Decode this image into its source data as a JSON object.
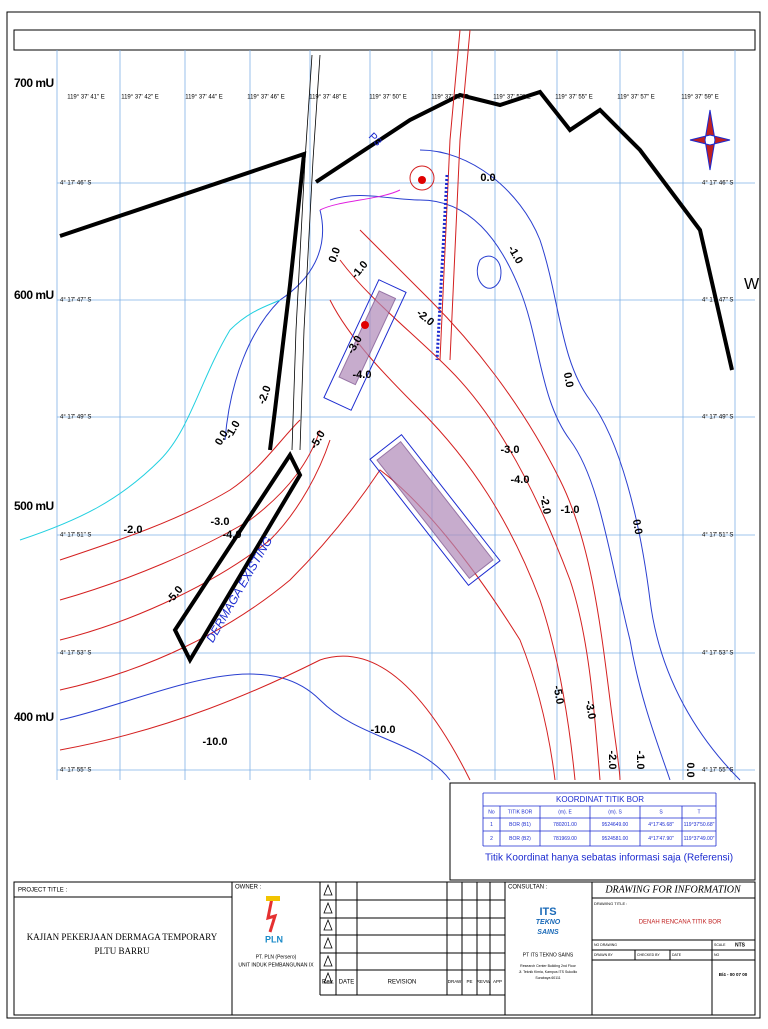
{
  "map": {
    "y_axis_labels": [
      "700 mU",
      "600 mU",
      "500 mU",
      "400 mU"
    ],
    "top_coords": [
      "119° 37' 41\" E",
      "119° 37' 42\" E",
      "119° 37' 44\" E",
      "119° 37' 46\" E",
      "119° 37' 48\" E",
      "119° 37' 50\" E",
      "119° 37' 51\" E",
      "119° 37' 53\" E",
      "119° 37' 55\" E",
      "119° 37' 57\" E",
      "119° 37' 59\" E"
    ],
    "left_coords": [
      "4° 17' 46\" S",
      "4° 17' 47\" S",
      "4° 17' 49\" S",
      "4° 17' 51\" S",
      "4° 17' 53\" S",
      "4° 17' 55\" S"
    ],
    "right_coords": [
      "4° 17' 46\" S",
      "4° 17' 47\" S",
      "4° 17' 49\" S",
      "4° 17' 51\" S",
      "4° 17' 53\" S",
      "4° 17' 55\" S"
    ],
    "contour_labels": [
      "0.0",
      "-1.0",
      "-2.0",
      "-1.0",
      "0.0",
      "-3.0",
      "-4.0",
      "0.0",
      "-2.0",
      "-1.0",
      "0.0",
      "-5.0",
      "-3.0",
      "-4.0",
      "-2.0",
      "-1.0",
      "0.0",
      "-2.0",
      "-3.0",
      "-4.0",
      "-5.0",
      "-5.0",
      "-3.0",
      "-2.0",
      "-1.0",
      "0.0",
      "-10.0",
      "-10.0"
    ],
    "structure_label": "DERMAGA EXISTING",
    "marker": "P3",
    "edge_letter": "W"
  },
  "table": {
    "title": "KOORDINAT TITIK BOR",
    "headers": [
      "No",
      "TITIK BOR",
      "(m). E",
      "(m). S",
      "S",
      "T"
    ],
    "rows": [
      [
        "1",
        "BOR (B1)",
        "780201.00",
        "9524649.00",
        "4°17'45.68\"",
        "119°37'50.68\""
      ],
      [
        "2",
        "BOR (B2)",
        "781969.00",
        "9524581.00",
        "4°17'47.90\"",
        "119°37'49.00\""
      ]
    ],
    "note": "Titik Koordinat hanya sebatas informasi saja (Referensi)"
  },
  "title_block": {
    "project_title_label": "PROJECT TITLE :",
    "project_title": [
      "KAJIAN PEKERJAAN DERMAGA TEMPORARY",
      "PLTU BARRU"
    ],
    "owner_label": "OWNER :",
    "owner_logo": "PLN",
    "owner": [
      "PT. PLN (Persero)",
      "UNIT INDUK PEMBANGUNAN IX"
    ],
    "revision_headers": [
      "Rev.",
      "DATE",
      "REVISION",
      "DRAW",
      "PE",
      "REVW",
      "APP"
    ],
    "consultant_label": "CONSULTAN :",
    "consultant_logo": [
      "ITS",
      "TEKNO",
      "SAINS"
    ],
    "consultant": "PT ITS TEKNO SAINS",
    "consultant_address": [
      "Research Center Building 2nd Floor",
      "Jl. Teknik Kimia, Kampus ITS Sukolilo",
      "Surabaya 60111"
    ],
    "drawing_for": "DRAWING FOR INFORMATION",
    "drawing_title_label": "DRAWING TITLE :",
    "drawing_title": "DENAH RENCANA TITIK BOR",
    "fields": [
      "NO DRAWING",
      "SCALE",
      "DRAWN BY",
      "CHECKED BY",
      "DATE",
      "NO"
    ],
    "scale_value": "NTS",
    "sheet_code": "B/4 - 00 07 00"
  }
}
